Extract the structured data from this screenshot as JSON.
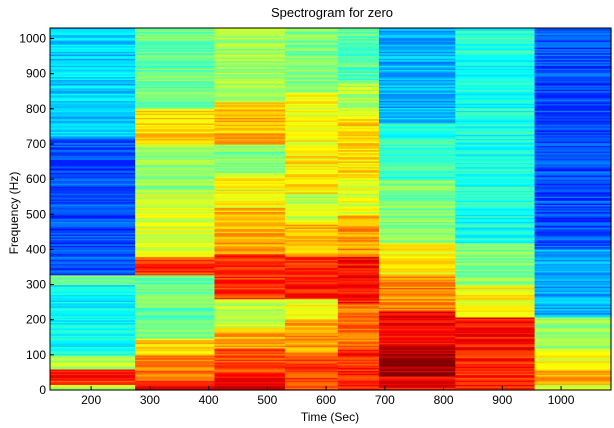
{
  "chart_data": {
    "type": "heatmap",
    "title": "Spectrogram for zero",
    "xlabel": "Time (Sec)",
    "ylabel": "Frequency (Hz)",
    "xlim": [
      130,
      1085
    ],
    "ylim": [
      0,
      1030
    ],
    "xticks": [
      200,
      300,
      400,
      500,
      600,
      700,
      800,
      900,
      1000
    ],
    "yticks": [
      0,
      100,
      200,
      300,
      400,
      500,
      600,
      700,
      800,
      900,
      1000
    ],
    "grid": false,
    "colormap": "jet",
    "intensity_range": [
      0,
      1
    ],
    "frames": [
      {
        "x0": 130,
        "x1": 275,
        "bands": [
          {
            "f0": 0,
            "f1": 15,
            "v": 0.55
          },
          {
            "f0": 15,
            "f1": 35,
            "v": 0.82
          },
          {
            "f0": 35,
            "f1": 60,
            "v": 0.86
          },
          {
            "f0": 60,
            "f1": 100,
            "v": 0.55
          },
          {
            "f0": 100,
            "f1": 300,
            "v": 0.38
          },
          {
            "f0": 300,
            "f1": 330,
            "v": 0.48
          },
          {
            "f0": 330,
            "f1": 720,
            "v": 0.2
          },
          {
            "f0": 720,
            "f1": 1030,
            "v": 0.33
          }
        ]
      },
      {
        "x0": 275,
        "x1": 410,
        "bands": [
          {
            "f0": 0,
            "f1": 30,
            "v": 0.88
          },
          {
            "f0": 30,
            "f1": 100,
            "v": 0.76
          },
          {
            "f0": 100,
            "f1": 150,
            "v": 0.66
          },
          {
            "f0": 150,
            "f1": 330,
            "v": 0.48
          },
          {
            "f0": 330,
            "f1": 380,
            "v": 0.82
          },
          {
            "f0": 380,
            "f1": 560,
            "v": 0.6
          },
          {
            "f0": 560,
            "f1": 700,
            "v": 0.52
          },
          {
            "f0": 700,
            "f1": 800,
            "v": 0.66
          },
          {
            "f0": 800,
            "f1": 1030,
            "v": 0.48
          }
        ]
      },
      {
        "x0": 410,
        "x1": 530,
        "bands": [
          {
            "f0": 0,
            "f1": 50,
            "v": 0.9
          },
          {
            "f0": 50,
            "f1": 120,
            "v": 0.8
          },
          {
            "f0": 120,
            "f1": 180,
            "v": 0.7
          },
          {
            "f0": 180,
            "f1": 260,
            "v": 0.56
          },
          {
            "f0": 260,
            "f1": 390,
            "v": 0.82
          },
          {
            "f0": 390,
            "f1": 520,
            "v": 0.7
          },
          {
            "f0": 520,
            "f1": 620,
            "v": 0.62
          },
          {
            "f0": 620,
            "f1": 700,
            "v": 0.5
          },
          {
            "f0": 700,
            "f1": 820,
            "v": 0.7
          },
          {
            "f0": 820,
            "f1": 1030,
            "v": 0.54
          }
        ]
      },
      {
        "x0": 530,
        "x1": 620,
        "bands": [
          {
            "f0": 0,
            "f1": 100,
            "v": 0.82
          },
          {
            "f0": 100,
            "f1": 200,
            "v": 0.72
          },
          {
            "f0": 200,
            "f1": 260,
            "v": 0.62
          },
          {
            "f0": 260,
            "f1": 380,
            "v": 0.84
          },
          {
            "f0": 380,
            "f1": 480,
            "v": 0.7
          },
          {
            "f0": 480,
            "f1": 560,
            "v": 0.56
          },
          {
            "f0": 560,
            "f1": 700,
            "v": 0.64
          },
          {
            "f0": 700,
            "f1": 850,
            "v": 0.62
          },
          {
            "f0": 850,
            "f1": 1030,
            "v": 0.5
          }
        ]
      },
      {
        "x0": 620,
        "x1": 690,
        "bands": [
          {
            "f0": 0,
            "f1": 120,
            "v": 0.84
          },
          {
            "f0": 120,
            "f1": 250,
            "v": 0.76
          },
          {
            "f0": 250,
            "f1": 380,
            "v": 0.86
          },
          {
            "f0": 380,
            "f1": 500,
            "v": 0.72
          },
          {
            "f0": 500,
            "f1": 600,
            "v": 0.6
          },
          {
            "f0": 600,
            "f1": 780,
            "v": 0.66
          },
          {
            "f0": 780,
            "f1": 880,
            "v": 0.56
          },
          {
            "f0": 880,
            "f1": 1030,
            "v": 0.46
          }
        ]
      },
      {
        "x0": 690,
        "x1": 820,
        "bands": [
          {
            "f0": 0,
            "f1": 40,
            "v": 0.88
          },
          {
            "f0": 40,
            "f1": 130,
            "v": 0.96
          },
          {
            "f0": 130,
            "f1": 230,
            "v": 0.88
          },
          {
            "f0": 230,
            "f1": 330,
            "v": 0.74
          },
          {
            "f0": 330,
            "f1": 420,
            "v": 0.64
          },
          {
            "f0": 420,
            "f1": 600,
            "v": 0.5
          },
          {
            "f0": 600,
            "f1": 760,
            "v": 0.42
          },
          {
            "f0": 760,
            "f1": 1030,
            "v": 0.3
          }
        ]
      },
      {
        "x0": 820,
        "x1": 955,
        "bands": [
          {
            "f0": 0,
            "f1": 100,
            "v": 0.84
          },
          {
            "f0": 100,
            "f1": 210,
            "v": 0.86
          },
          {
            "f0": 210,
            "f1": 300,
            "v": 0.62
          },
          {
            "f0": 300,
            "f1": 420,
            "v": 0.5
          },
          {
            "f0": 420,
            "f1": 1030,
            "v": 0.4
          }
        ]
      },
      {
        "x0": 955,
        "x1": 1085,
        "bands": [
          {
            "f0": 0,
            "f1": 15,
            "v": 0.56
          },
          {
            "f0": 15,
            "f1": 60,
            "v": 0.7
          },
          {
            "f0": 60,
            "f1": 120,
            "v": 0.62
          },
          {
            "f0": 120,
            "f1": 210,
            "v": 0.52
          },
          {
            "f0": 210,
            "f1": 400,
            "v": 0.3
          },
          {
            "f0": 400,
            "f1": 1030,
            "v": 0.2
          }
        ]
      }
    ]
  }
}
